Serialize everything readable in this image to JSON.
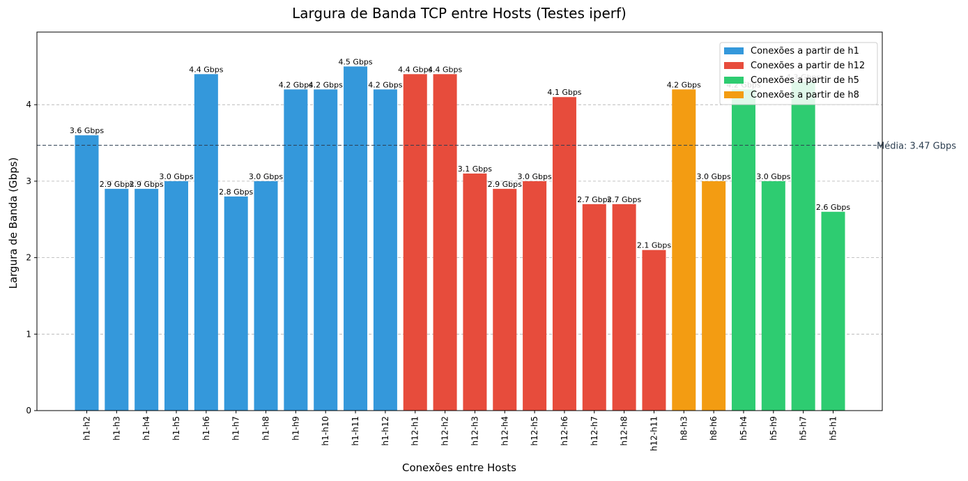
{
  "chart_data": {
    "type": "bar",
    "title": "Largura de Banda TCP entre Hosts (Testes iperf)",
    "xlabel": "Conexões entre Hosts",
    "ylabel": "Largura de Banda (Gbps)",
    "ylim": [
      0,
      4.95
    ],
    "yticks": [
      0,
      1,
      2,
      3,
      4
    ],
    "grid": "y-dashed",
    "legend_position": "top-right",
    "categories": [
      "h1-h2",
      "h1-h3",
      "h1-h4",
      "h1-h5",
      "h1-h6",
      "h1-h7",
      "h1-h8",
      "h1-h9",
      "h1-h10",
      "h1-h11",
      "h1-h12",
      "h12-h1",
      "h12-h2",
      "h12-h3",
      "h12-h4",
      "h12-h5",
      "h12-h6",
      "h12-h7",
      "h12-h8",
      "h12-h11",
      "h8-h3",
      "h8-h6",
      "h5-h4",
      "h5-h9",
      "h5-h7",
      "h5-h1"
    ],
    "values": [
      3.6,
      2.9,
      2.9,
      3.0,
      4.4,
      2.8,
      3.0,
      4.2,
      4.2,
      4.5,
      4.2,
      4.4,
      4.4,
      3.1,
      2.9,
      3.0,
      4.1,
      2.7,
      2.7,
      2.1,
      4.2,
      3.0,
      4.2,
      3.0,
      4.3,
      2.6
    ],
    "data_labels": [
      "3.6 Gbps",
      "2.9 Gbps",
      "2.9 Gbps",
      "3.0 Gbps",
      "4.4 Gbps",
      "2.8 Gbps",
      "3.0 Gbps",
      "4.2 Gbps",
      "4.2 Gbps",
      "4.5 Gbps",
      "4.2 Gbps",
      "4.4 Gbps",
      "4.4 Gbps",
      "3.1 Gbps",
      "2.9 Gbps",
      "3.0 Gbps",
      "4.1 Gbps",
      "2.7 Gbps",
      "2.7 Gbps",
      "2.1 Gbps",
      "4.2 Gbps",
      "3.0 Gbps",
      "4.2 Gbps",
      "3.0 Gbps",
      "4.3 Gbps",
      "2.6 Gbps"
    ],
    "bar_groups": [
      "h1",
      "h1",
      "h1",
      "h1",
      "h1",
      "h1",
      "h1",
      "h1",
      "h1",
      "h1",
      "h1",
      "h12",
      "h12",
      "h12",
      "h12",
      "h12",
      "h12",
      "h12",
      "h12",
      "h12",
      "h8",
      "h8",
      "h5",
      "h5",
      "h5",
      "h5"
    ],
    "legend": [
      {
        "key": "h1",
        "label": "Conexões a partir de h1",
        "color": "#3498db"
      },
      {
        "key": "h12",
        "label": "Conexões a partir de h12",
        "color": "#e74c3c"
      },
      {
        "key": "h5",
        "label": "Conexões a partir de h5",
        "color": "#2ecc71"
      },
      {
        "key": "h8",
        "label": "Conexões a partir de h8",
        "color": "#f39c12"
      }
    ],
    "mean": {
      "value": 3.47,
      "label": "Média: 3.47 Gbps",
      "color": "#2c3e50"
    }
  }
}
